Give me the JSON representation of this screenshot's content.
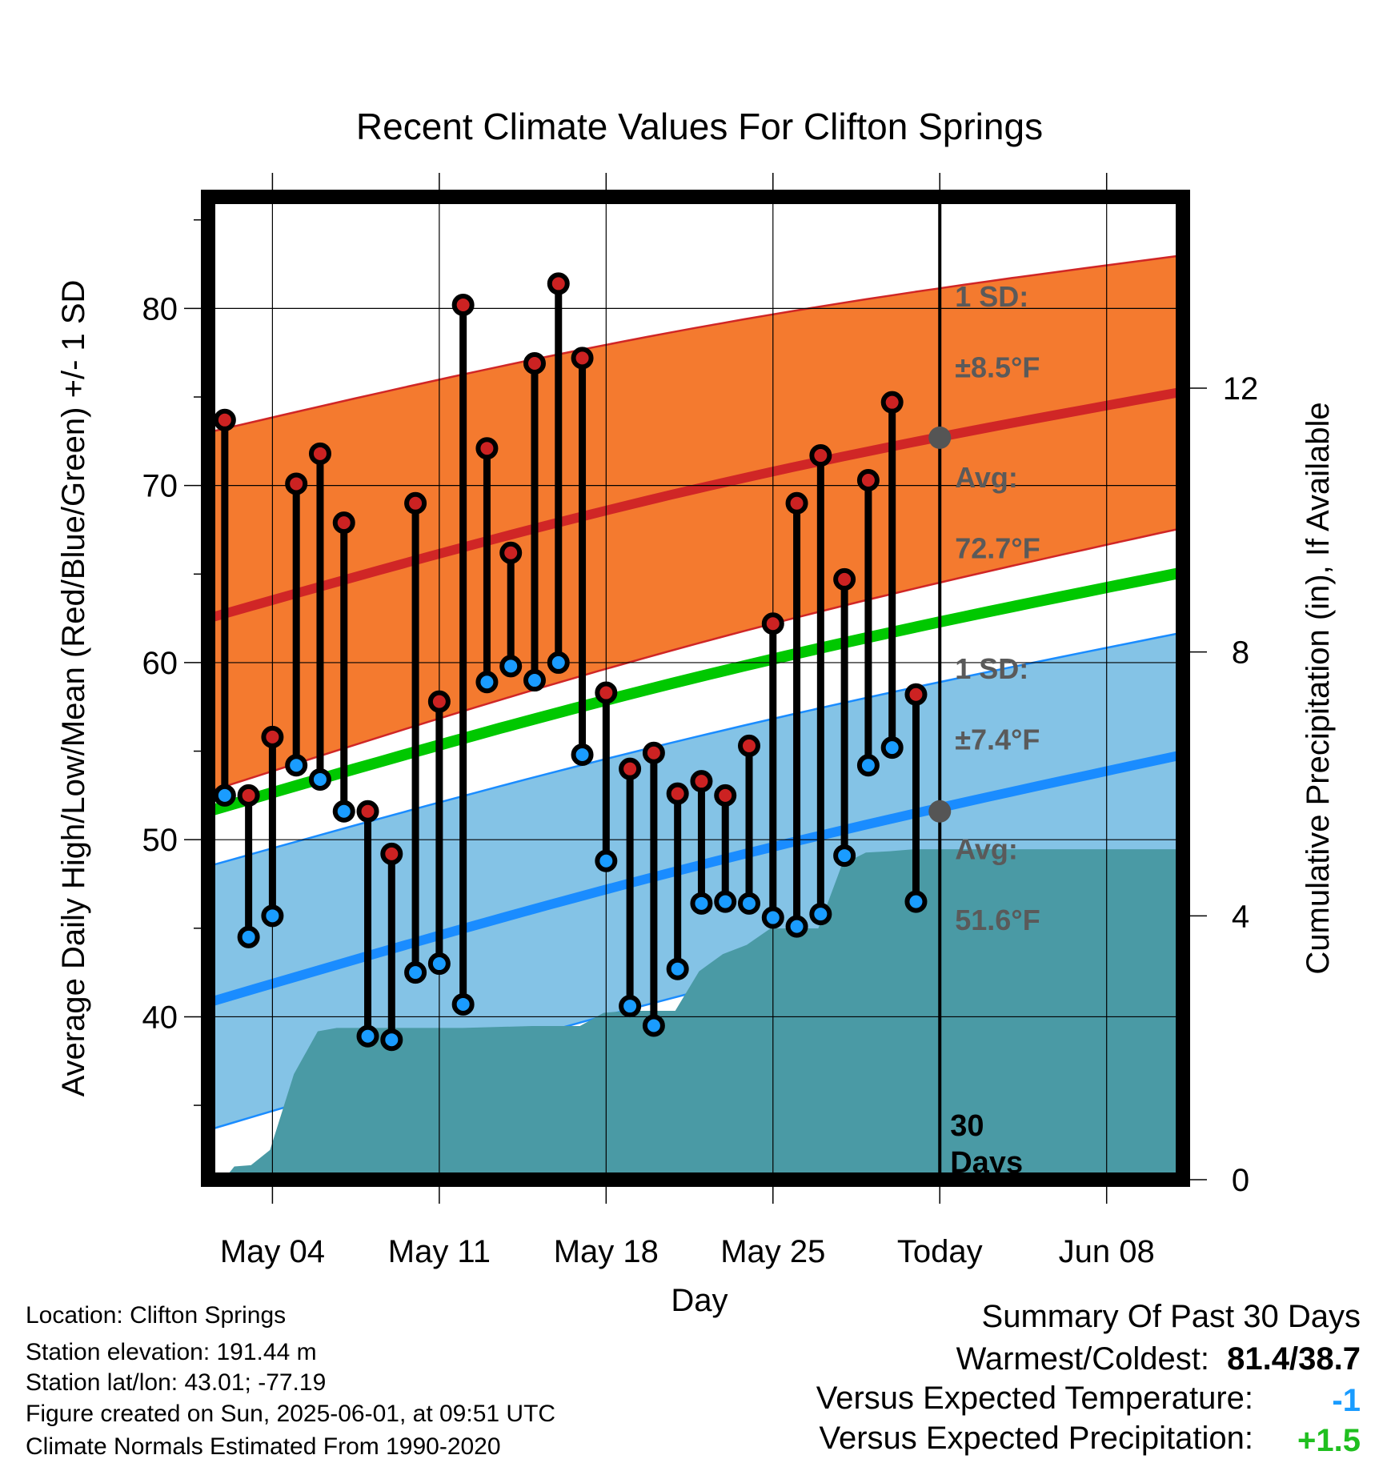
{
  "chart_data": {
    "type": "line",
    "title": "Recent Climate Values For Clifton Springs",
    "xlabel": "Day",
    "ylabel": "Average Daily High/Low/Mean (Red/Blue/Green) +/- 1 SD",
    "y2label": "Cumulative Precipitation (in), If Available",
    "x_ticks": [
      {
        "day": 3,
        "label": "May 04"
      },
      {
        "day": 10,
        "label": "May 11"
      },
      {
        "day": 17,
        "label": "May 18"
      },
      {
        "day": 24,
        "label": "May 25"
      },
      {
        "day": 31,
        "label": "Today"
      },
      {
        "day": 38,
        "label": "Jun 08"
      }
    ],
    "xlim": [
      0.3,
      41.2
    ],
    "ylim": [
      30.8,
      86.3
    ],
    "y_ticks": [
      40,
      50,
      60,
      70,
      80
    ],
    "y2lim": [
      0,
      14.9
    ],
    "y2_ticks": [
      0,
      4,
      8,
      12
    ],
    "today_day": 31,
    "today_label": "30 Days",
    "normals": {
      "days": [
        0.3,
        41.2
      ],
      "high_mean": [
        62.5,
        75.3
      ],
      "high_upper": [
        73.0,
        83.0
      ],
      "high_lower": [
        52.7,
        67.6
      ],
      "mean": [
        51.6,
        65.1
      ],
      "low_mean": [
        40.8,
        54.8
      ],
      "low_upper": [
        48.5,
        61.7
      ],
      "low_lower": [
        33.6,
        47.8
      ]
    },
    "series": [
      {
        "name": "High",
        "days": [
          1,
          2,
          3,
          4,
          5,
          6,
          7,
          8,
          9,
          10,
          11,
          12,
          13,
          14,
          15,
          16,
          17,
          18,
          19,
          20,
          21,
          22,
          23,
          24,
          25,
          26,
          27,
          28,
          29,
          30
        ],
        "values": [
          73.7,
          52.5,
          55.8,
          70.1,
          71.8,
          67.9,
          51.6,
          49.2,
          69.0,
          57.8,
          80.2,
          72.1,
          66.2,
          76.9,
          81.4,
          77.2,
          58.3,
          54.0,
          54.9,
          52.6,
          53.3,
          52.5,
          55.3,
          62.2,
          69.0,
          71.7,
          64.7,
          70.3,
          74.7,
          58.2
        ]
      },
      {
        "name": "Low",
        "days": [
          1,
          2,
          3,
          4,
          5,
          6,
          7,
          8,
          9,
          10,
          11,
          12,
          13,
          14,
          15,
          16,
          17,
          18,
          19,
          20,
          21,
          22,
          23,
          24,
          25,
          26,
          27,
          28,
          29,
          30
        ],
        "values": [
          52.5,
          44.5,
          45.7,
          54.2,
          53.4,
          51.6,
          38.9,
          38.7,
          42.5,
          43.0,
          40.7,
          58.9,
          59.8,
          59.0,
          60.0,
          54.8,
          48.8,
          40.6,
          39.5,
          42.7,
          46.4,
          46.5,
          46.4,
          45.6,
          45.1,
          45.8,
          49.1,
          54.2,
          55.2,
          46.5
        ]
      }
    ],
    "precip": {
      "days": [
        1.0,
        1.4,
        2.1,
        2.9,
        3.9,
        4.9,
        5.7,
        6.3,
        7.2,
        9.5,
        11.0,
        13.9,
        15.9,
        16.9,
        17.9,
        19.9,
        20.9,
        21.9,
        22.9,
        23.9,
        24.9,
        25.9,
        26.9,
        27.9,
        28.9,
        29.9,
        31.0,
        41.2
      ],
      "values": [
        0.02,
        0.2,
        0.22,
        0.45,
        1.6,
        2.25,
        2.3,
        2.3,
        2.3,
        2.3,
        2.3,
        2.33,
        2.33,
        2.53,
        2.56,
        2.56,
        3.16,
        3.42,
        3.56,
        3.81,
        3.81,
        3.81,
        4.78,
        4.96,
        4.98,
        5.01,
        5.01,
        5.01
      ]
    },
    "annotations": {
      "high_sd_label": "1 SD:",
      "high_sd_value": "±8.5°F",
      "high_avg_label": "Avg:",
      "high_avg_value": "72.7°F",
      "high_avg": 72.7,
      "low_sd_label": "1 SD:",
      "low_sd_value": "±7.4°F",
      "low_avg_label": "Avg:",
      "low_avg_value": "51.6°F",
      "low_avg": 51.6
    },
    "colors": {
      "high_band": "#f47a2f",
      "high_line": "#d02626",
      "mean_line": "#00c800",
      "low_band": "#84c3e6",
      "low_line": "#1a8cff",
      "high_marker": "#cc2222",
      "low_marker": "#1a9cff",
      "precip": "#4a9aa5",
      "annotation_text": "#5a5a5a"
    }
  },
  "info": {
    "location": "Location: Clifton Springs",
    "elevation": "Station elevation: 191.44 m",
    "latlon": "Station lat/lon: 43.01; -77.19",
    "created": "Figure created on Sun, 2025-06-01, at 09:51 UTC",
    "normals": "Climate Normals Estimated From 1990-2020"
  },
  "summary": {
    "title": "Summary Of Past 30 Days",
    "warm_cold_label": "Warmest/Coldest:",
    "warm_cold_value": "81.4/38.7",
    "temp_label": "Versus Expected Temperature:",
    "temp_value": "-1",
    "temp_color": "#1a9cff",
    "precip_label": "Versus Expected Precipitation:",
    "precip_value": "+1.5",
    "precip_color": "#1fbf1f"
  }
}
